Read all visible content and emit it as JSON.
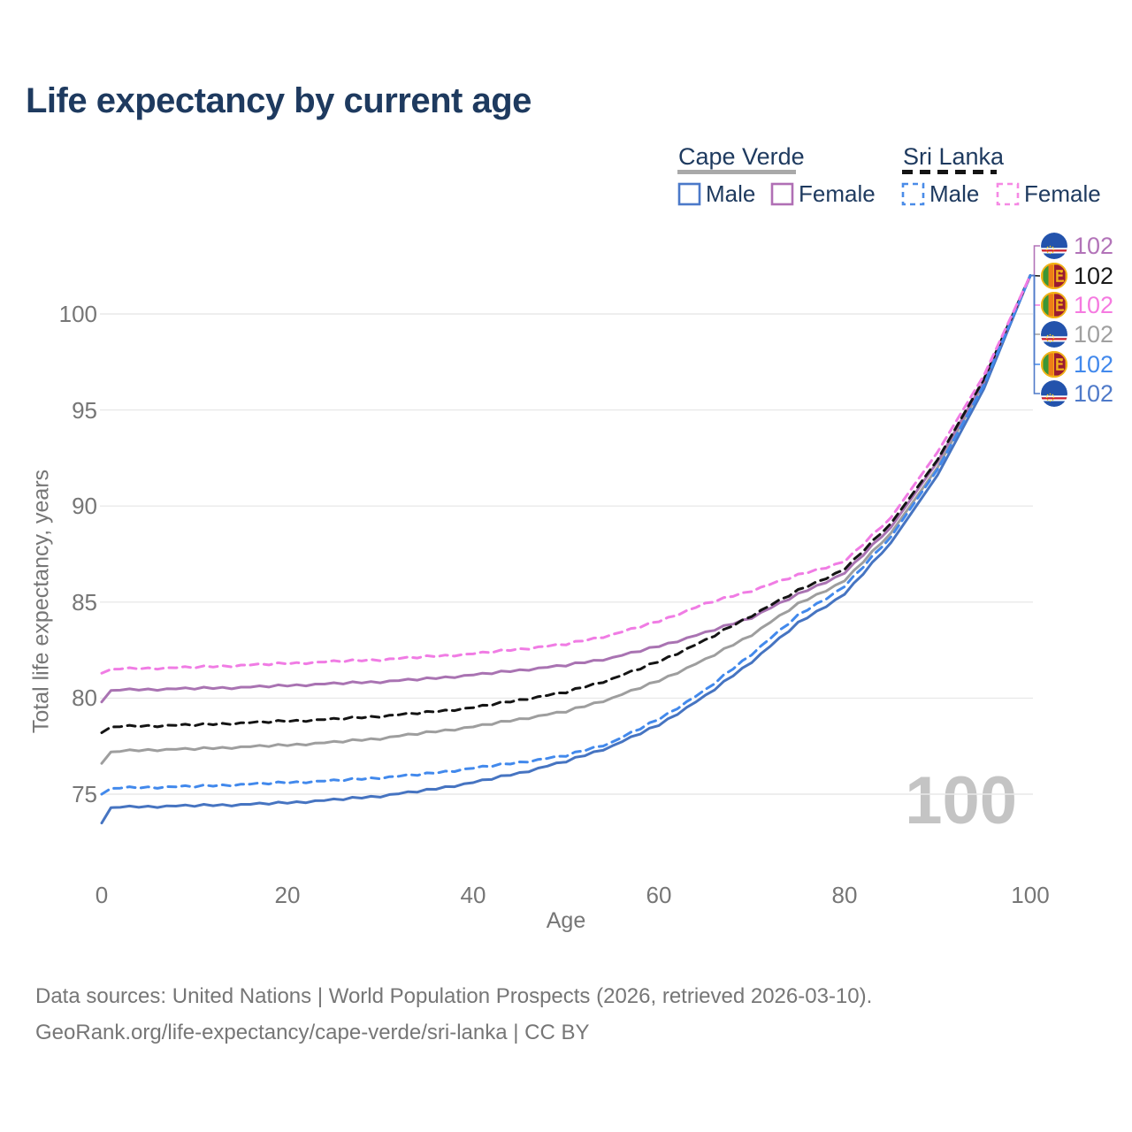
{
  "title": "Life expectancy by current age",
  "legend": {
    "groups": [
      {
        "label": "Cape Verde",
        "line_style": "solid",
        "underline_color": "#a9a9a9"
      },
      {
        "label": "Sri Lanka",
        "line_style": "dashed",
        "underline_color": "#141414"
      }
    ],
    "items": [
      {
        "label": "Male",
        "group": "Cape Verde",
        "swatch_color": "#4b79c9",
        "dash": false
      },
      {
        "label": "Female",
        "group": "Cape Verde",
        "swatch_color": "#b06fb5",
        "dash": false
      },
      {
        "label": "Male",
        "group": "Sri Lanka",
        "swatch_color": "#4a8ce8",
        "dash": true
      },
      {
        "label": "Female",
        "group": "Sri Lanka",
        "swatch_color": "#f689e4",
        "dash": true
      }
    ]
  },
  "axes": {
    "x": {
      "title": "Age",
      "ticks": [
        "0",
        "20",
        "40",
        "60",
        "80",
        "100"
      ],
      "tick_values": [
        0,
        20,
        40,
        60,
        80,
        100
      ]
    },
    "y": {
      "title": "Total life expectancy, years",
      "ticks": [
        "75",
        "80",
        "85",
        "90",
        "95",
        "100"
      ],
      "tick_values": [
        75,
        80,
        85,
        90,
        95,
        100
      ]
    }
  },
  "watermark": "100",
  "end_labels": [
    {
      "flag": "cape-verde",
      "value": "102",
      "color": "#b273b8",
      "series": "Cape Verde Female"
    },
    {
      "flag": "sri-lanka",
      "value": "102",
      "color": "#1a1a1a",
      "series": "Sri Lanka"
    },
    {
      "flag": "sri-lanka",
      "value": "102",
      "color": "#f57ae0",
      "series": "Sri Lanka Female"
    },
    {
      "flag": "cape-verde",
      "value": "102",
      "color": "#a0a0a0",
      "series": "Cape Verde"
    },
    {
      "flag": "sri-lanka",
      "value": "102",
      "color": "#4289ec",
      "series": "Sri Lanka Male"
    },
    {
      "flag": "cape-verde",
      "value": "102",
      "color": "#4f7ac9",
      "series": "Cape Verde Male"
    }
  ],
  "footer": {
    "line1": "Data sources: United Nations | World Population Prospects (2026, retrieved 2026-03-10).",
    "line2": "GeoRank.org/life-expectancy/cape-verde/sri-lanka | CC BY"
  },
  "chart_data": {
    "type": "line",
    "xlabel": "Age",
    "ylabel": "Total life expectancy, years",
    "xlim": [
      0,
      100
    ],
    "ylim": [
      73,
      103
    ],
    "grid": "horizontal",
    "legend_position": "top-right",
    "series": [
      {
        "name": "Cape Verde Male",
        "color": "#4674c1",
        "dash": false,
        "points": [
          [
            0,
            73.5
          ],
          [
            1,
            74.3
          ],
          [
            5,
            74.35
          ],
          [
            10,
            74.4
          ],
          [
            15,
            74.45
          ],
          [
            20,
            74.55
          ],
          [
            25,
            74.7
          ],
          [
            30,
            74.9
          ],
          [
            35,
            75.2
          ],
          [
            40,
            75.6
          ],
          [
            45,
            76.1
          ],
          [
            50,
            76.7
          ],
          [
            55,
            77.5
          ],
          [
            60,
            78.6
          ],
          [
            65,
            80.1
          ],
          [
            70,
            81.9
          ],
          [
            75,
            83.9
          ],
          [
            80,
            85.4
          ],
          [
            85,
            88.1
          ],
          [
            90,
            91.6
          ],
          [
            95,
            96.1
          ],
          [
            100,
            102
          ]
        ]
      },
      {
        "name": "Cape Verde",
        "color": "#9e9e9e",
        "dash": false,
        "points": [
          [
            0,
            76.6
          ],
          [
            1,
            77.2
          ],
          [
            5,
            77.3
          ],
          [
            10,
            77.35
          ],
          [
            15,
            77.45
          ],
          [
            20,
            77.55
          ],
          [
            25,
            77.7
          ],
          [
            30,
            77.9
          ],
          [
            35,
            78.2
          ],
          [
            40,
            78.5
          ],
          [
            45,
            78.9
          ],
          [
            50,
            79.3
          ],
          [
            55,
            80.0
          ],
          [
            60,
            80.9
          ],
          [
            65,
            82.0
          ],
          [
            70,
            83.3
          ],
          [
            75,
            84.9
          ],
          [
            80,
            86.1
          ],
          [
            85,
            88.6
          ],
          [
            90,
            92.0
          ],
          [
            95,
            96.4
          ],
          [
            100,
            102
          ]
        ]
      },
      {
        "name": "Cape Verde Female",
        "color": "#a973b2",
        "dash": false,
        "points": [
          [
            0,
            79.8
          ],
          [
            1,
            80.4
          ],
          [
            5,
            80.45
          ],
          [
            10,
            80.5
          ],
          [
            15,
            80.55
          ],
          [
            20,
            80.65
          ],
          [
            25,
            80.75
          ],
          [
            30,
            80.85
          ],
          [
            35,
            81.0
          ],
          [
            40,
            81.2
          ],
          [
            45,
            81.45
          ],
          [
            50,
            81.7
          ],
          [
            55,
            82.1
          ],
          [
            60,
            82.7
          ],
          [
            65,
            83.4
          ],
          [
            70,
            84.2
          ],
          [
            75,
            85.4
          ],
          [
            80,
            86.5
          ],
          [
            85,
            88.9
          ],
          [
            90,
            92.3
          ],
          [
            95,
            96.5
          ],
          [
            100,
            102
          ]
        ]
      },
      {
        "name": "Sri Lanka",
        "color": "#141414",
        "dash": true,
        "points": [
          [
            0,
            78.2
          ],
          [
            1,
            78.5
          ],
          [
            5,
            78.55
          ],
          [
            10,
            78.6
          ],
          [
            15,
            78.7
          ],
          [
            20,
            78.8
          ],
          [
            25,
            78.9
          ],
          [
            30,
            79.05
          ],
          [
            35,
            79.25
          ],
          [
            40,
            79.5
          ],
          [
            45,
            79.9
          ],
          [
            50,
            80.3
          ],
          [
            55,
            81.0
          ],
          [
            60,
            81.9
          ],
          [
            65,
            83.0
          ],
          [
            70,
            84.3
          ],
          [
            75,
            85.6
          ],
          [
            80,
            86.7
          ],
          [
            85,
            89.1
          ],
          [
            90,
            92.4
          ],
          [
            95,
            96.6
          ],
          [
            100,
            102
          ]
        ]
      },
      {
        "name": "Sri Lanka Male",
        "color": "#4289ec",
        "dash": true,
        "points": [
          [
            0,
            75.0
          ],
          [
            1,
            75.3
          ],
          [
            5,
            75.35
          ],
          [
            10,
            75.4
          ],
          [
            15,
            75.5
          ],
          [
            20,
            75.6
          ],
          [
            25,
            75.7
          ],
          [
            30,
            75.85
          ],
          [
            35,
            76.05
          ],
          [
            40,
            76.35
          ],
          [
            45,
            76.65
          ],
          [
            50,
            77.0
          ],
          [
            55,
            77.7
          ],
          [
            60,
            78.9
          ],
          [
            65,
            80.4
          ],
          [
            70,
            82.3
          ],
          [
            75,
            84.3
          ],
          [
            80,
            85.8
          ],
          [
            85,
            88.4
          ],
          [
            90,
            91.9
          ],
          [
            95,
            96.3
          ],
          [
            100,
            102
          ]
        ]
      },
      {
        "name": "Sri Lanka Female",
        "color": "#f07ce4",
        "dash": true,
        "points": [
          [
            0,
            81.3
          ],
          [
            1,
            81.5
          ],
          [
            5,
            81.55
          ],
          [
            10,
            81.6
          ],
          [
            15,
            81.7
          ],
          [
            20,
            81.8
          ],
          [
            25,
            81.9
          ],
          [
            30,
            82.0
          ],
          [
            35,
            82.15
          ],
          [
            40,
            82.3
          ],
          [
            45,
            82.55
          ],
          [
            50,
            82.8
          ],
          [
            55,
            83.3
          ],
          [
            60,
            84.0
          ],
          [
            65,
            84.9
          ],
          [
            70,
            85.6
          ],
          [
            75,
            86.4
          ],
          [
            80,
            87.1
          ],
          [
            85,
            89.4
          ],
          [
            90,
            92.8
          ],
          [
            95,
            96.8
          ],
          [
            100,
            102
          ]
        ]
      }
    ],
    "end_value_all_series": 102
  }
}
